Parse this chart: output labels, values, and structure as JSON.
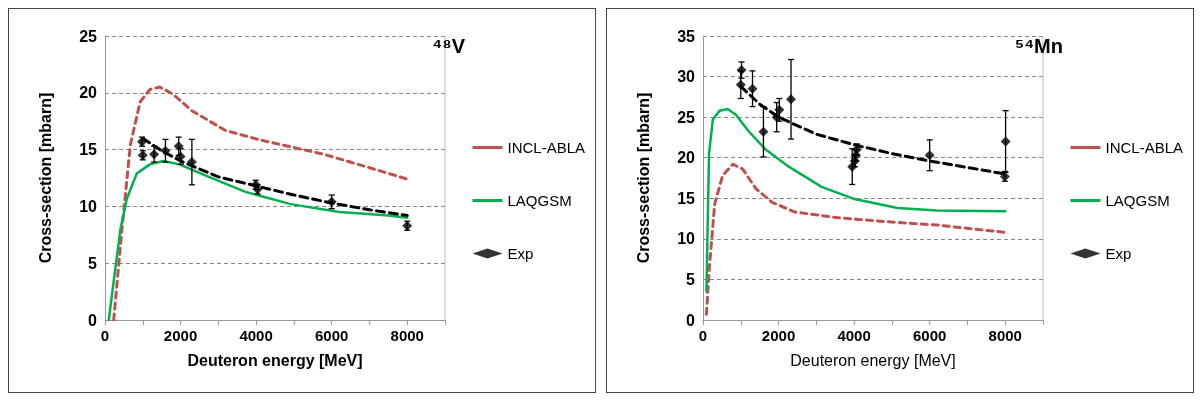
{
  "chart_data": [
    {
      "type": "line",
      "title": "⁴⁸V",
      "xlabel": "Deuteron energy [MeV]",
      "ylabel": "Cross-section [mbarn]",
      "xlim": [
        0,
        9000
      ],
      "ylim": [
        0,
        25
      ],
      "xticks": [
        0,
        {
          "value": 1000,
          "label": null
        },
        2000,
        {
          "value": 3000,
          "label": null
        },
        4000,
        {
          "value": 5000,
          "label": null
        },
        6000,
        {
          "value": 7000,
          "label": null
        },
        8000,
        {
          "value": 9000,
          "label": null
        }
      ],
      "yticks": [
        0,
        5,
        10,
        15,
        20,
        25
      ],
      "grid": "y",
      "legend": "right",
      "series": [
        {
          "name": "INCL-ABLA",
          "color": "#c0504d",
          "line_style": "dashed",
          "marker": "none",
          "x": [
            230,
            450,
            670,
            930,
            1190,
            1450,
            1790,
            2310,
            3180,
            4040,
            5780,
            7510,
            8000
          ],
          "values": [
            0,
            8.0,
            15.4,
            19.2,
            20.3,
            20.5,
            19.9,
            18.4,
            16.7,
            15.9,
            14.6,
            12.9,
            12.4
          ]
        },
        {
          "name": "LAQGSM",
          "color": "#00b050",
          "line_style": "solid",
          "marker": "none",
          "x": [
            100,
            230,
            410,
            580,
            840,
            1190,
            1540,
            1970,
            2750,
            3700,
            4910,
            6210,
            7510,
            8000
          ],
          "values": [
            0,
            3.4,
            8.0,
            10.7,
            12.9,
            13.7,
            14.0,
            13.7,
            12.6,
            11.3,
            10.2,
            9.5,
            9.2,
            9.0
          ]
        },
        {
          "color": "#000000",
          "line_style": "dashed",
          "marker": "none",
          "x": [
            1000,
            1500,
            2000,
            3000,
            4000,
            5000,
            6000,
            7000,
            8000
          ],
          "values": [
            16.0,
            14.9,
            14.0,
            12.6,
            11.8,
            11.0,
            10.3,
            9.7,
            9.2
          ]
        },
        {
          "name": "Exp",
          "type": "scatter",
          "color": "#000000",
          "marker": "diamond",
          "x": [
            980,
            1000,
            1300,
            1600,
            1950,
            2000,
            2300,
            3990,
            4040,
            6000,
            8000
          ],
          "values": [
            15.7,
            14.5,
            14.6,
            14.9,
            15.3,
            14.4,
            13.9,
            11.9,
            11.5,
            10.4,
            8.3
          ],
          "errors": [
            0.4,
            0.4,
            0.7,
            1.0,
            0.8,
            0.7,
            2.0,
            0.4,
            0.4,
            0.6,
            0.4
          ]
        }
      ]
    },
    {
      "type": "line",
      "title": "⁵⁴Mn",
      "xlabel": "Deuteron energy [MeV]",
      "ylabel": "Cross-section [mbarn]",
      "xlim": [
        0,
        9000
      ],
      "ylim": [
        0,
        35
      ],
      "xticks": [
        0,
        {
          "value": 1000,
          "label": null
        },
        2000,
        {
          "value": 3000,
          "label": null
        },
        4000,
        {
          "value": 5000,
          "label": null
        },
        6000,
        {
          "value": 7000,
          "label": null
        },
        8000,
        {
          "value": 9000,
          "label": null
        }
      ],
      "yticks": [
        0,
        5,
        10,
        15,
        20,
        25,
        30,
        35
      ],
      "grid": "y",
      "legend": "right",
      "series": [
        {
          "name": "INCL-ABLA",
          "color": "#c0504d",
          "line_style": "dashed",
          "marker": "none",
          "x": [
            90,
            170,
            310,
            520,
            790,
            1050,
            1400,
            1830,
            2440,
            3580,
            4890,
            6200,
            8000
          ],
          "values": [
            0.7,
            6.6,
            14.3,
            17.8,
            19.2,
            18.6,
            16.2,
            14.5,
            13.3,
            12.6,
            12.1,
            11.7,
            10.8
          ]
        },
        {
          "name": "LAQGSM",
          "color": "#00b050",
          "line_style": "solid",
          "marker": "none",
          "x": [
            90,
            160,
            260,
            440,
            650,
            870,
            1220,
            1660,
            2270,
            3140,
            4010,
            5150,
            6200,
            8000
          ],
          "values": [
            3.5,
            20.5,
            24.7,
            25.8,
            26.0,
            25.3,
            23.2,
            21.0,
            18.9,
            16.4,
            14.9,
            13.8,
            13.5,
            13.4
          ]
        },
        {
          "color": "#000000",
          "line_style": "dashed",
          "marker": "none",
          "x": [
            1000,
            1500,
            2000,
            3000,
            4000,
            5000,
            6000,
            7000,
            8000
          ],
          "values": [
            28.8,
            26.6,
            25.0,
            22.9,
            21.6,
            20.5,
            19.6,
            18.8,
            18.0
          ]
        },
        {
          "name": "Exp",
          "type": "scatter",
          "color": "#000000",
          "marker": "diamond",
          "x": [
            1000,
            1020,
            1310,
            1600,
            1950,
            2020,
            2330,
            3950,
            4020,
            4050,
            4070,
            6000,
            7990,
            8010
          ],
          "values": [
            29.0,
            30.8,
            28.5,
            23.2,
            25.0,
            25.9,
            27.2,
            18.9,
            19.6,
            20.3,
            21.0,
            20.3,
            17.7,
            22.0
          ],
          "errors": [
            1.7,
            1.0,
            2.2,
            3.1,
            1.8,
            1.4,
            4.9,
            2.2,
            0.7,
            0.7,
            0.7,
            1.9,
            0.6,
            3.8
          ]
        }
      ]
    }
  ]
}
